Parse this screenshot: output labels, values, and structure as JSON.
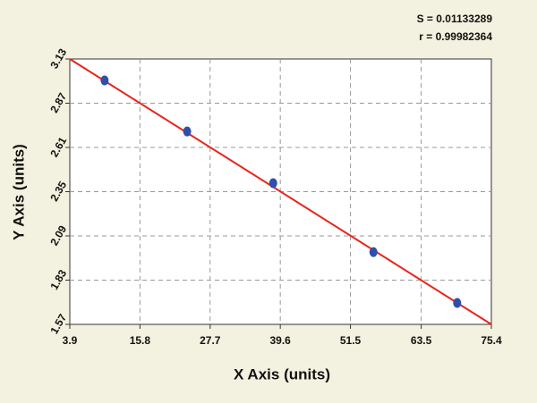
{
  "chart_data": {
    "type": "scatter",
    "annotations": [
      "S = 0.01133289",
      "r = 0.99982364"
    ],
    "xlabel": "X Axis (units)",
    "ylabel": "Y Axis (units)",
    "x": [
      9.8,
      23.8,
      38.4,
      55.4,
      69.6
    ],
    "values": [
      3.004,
      2.704,
      2.4,
      1.995,
      1.696
    ],
    "color": "#2f4fa8",
    "fit": {
      "x": [
        3.9,
        75.4
      ],
      "values": [
        3.13,
        1.57
      ],
      "color": "#e8251c"
    },
    "xlim": [
      3.9,
      75.4
    ],
    "xticks": [
      3.9,
      15.8,
      27.7,
      39.6,
      51.5,
      63.5,
      75.4
    ],
    "ylim": [
      1.57,
      3.13
    ],
    "yticks": [
      1.57,
      1.83,
      2.09,
      2.35,
      2.61,
      2.87,
      3.13
    ],
    "grid": true
  }
}
